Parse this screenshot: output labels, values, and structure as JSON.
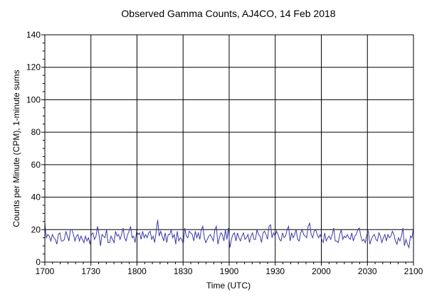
{
  "chart_data": {
    "type": "line",
    "title": "Observed Gamma Counts, AJ4CO, 14 Feb 2018",
    "xlabel": "Time (UTC)",
    "ylabel": "Counts per Minute (CPM), 1-minute sums",
    "x_tick_labels": [
      "1700",
      "1730",
      "1800",
      "1830",
      "1900",
      "1930",
      "2000",
      "2030",
      "2100"
    ],
    "y_ticks": [
      0,
      20,
      40,
      60,
      80,
      100,
      120,
      140
    ],
    "xlim_minutes": [
      0,
      240
    ],
    "ylim": [
      0,
      140
    ],
    "grid": true,
    "series_color": "#3a3aa8",
    "series": [
      {
        "values": [
          24,
          15,
          17,
          16,
          13,
          17,
          15,
          14,
          11,
          17,
          18,
          13,
          13,
          14,
          19,
          16,
          13,
          20,
          20,
          17,
          13,
          16,
          17,
          13,
          16,
          14,
          12,
          16,
          13,
          15,
          11,
          17,
          18,
          14,
          16,
          22,
          17,
          10,
          17,
          16,
          15,
          20,
          12,
          12,
          16,
          14,
          12,
          19,
          16,
          17,
          14,
          17,
          21,
          15,
          13,
          17,
          19,
          22,
          15,
          16,
          12,
          19,
          17,
          18,
          14,
          19,
          15,
          17,
          15,
          18,
          19,
          14,
          16,
          12,
          19,
          26,
          16,
          19,
          16,
          13,
          18,
          12,
          17,
          17,
          20,
          15,
          17,
          11,
          19,
          13,
          15,
          14,
          11,
          21,
          16,
          15,
          19,
          18,
          17,
          13,
          19,
          15,
          18,
          14,
          20,
          22,
          15,
          12,
          14,
          16,
          17,
          15,
          13,
          20,
          22,
          11,
          15,
          18,
          17,
          13,
          20,
          14,
          21,
          9,
          14,
          17,
          18,
          13,
          18,
          15,
          13,
          16,
          18,
          14,
          15,
          17,
          12,
          16,
          18,
          14,
          14,
          20,
          17,
          16,
          12,
          18,
          19,
          17,
          14,
          22,
          23,
          15,
          18,
          16,
          19,
          17,
          14,
          13,
          18,
          15,
          16,
          20,
          22,
          13,
          18,
          15,
          17,
          20,
          14,
          13,
          18,
          20,
          17,
          16,
          15,
          22,
          24,
          17,
          15,
          19,
          20,
          17,
          15,
          17,
          14,
          12,
          18,
          13,
          15,
          16,
          14,
          17,
          21,
          13,
          13,
          12,
          17,
          20,
          14,
          16,
          15,
          17,
          15,
          14,
          18,
          13,
          16,
          17,
          20,
          21,
          16,
          13,
          14,
          12,
          17,
          19,
          11,
          14,
          16,
          17,
          14,
          13,
          18,
          16,
          12,
          15,
          17,
          13,
          17,
          15,
          16,
          19,
          17,
          13,
          11,
          15,
          13,
          16,
          21,
          10,
          14,
          11,
          9,
          16,
          15,
          21
        ]
      }
    ]
  }
}
